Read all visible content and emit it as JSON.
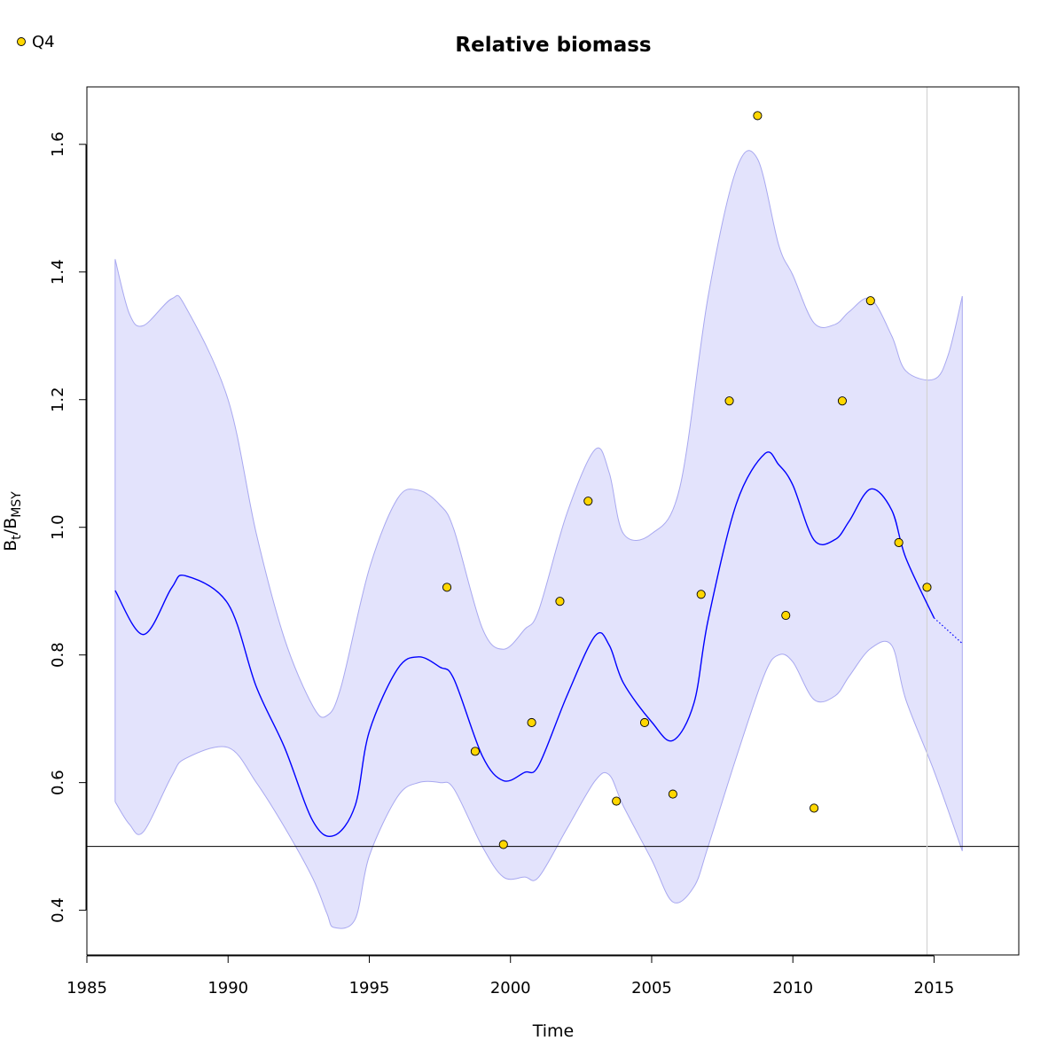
{
  "chart_data": {
    "type": "line",
    "title": "Relative biomass",
    "xlabel": "Time",
    "ylabel_main": "B",
    "ylabel_sub1": "t",
    "ylabel_slash": "/B",
    "ylabel_sub2": "MSY",
    "xlim": [
      1985,
      2018
    ],
    "ylim": [
      0.33,
      1.69
    ],
    "x_ticks": [
      1985,
      1990,
      1995,
      2000,
      2005,
      2010,
      2015
    ],
    "y_ticks": [
      0.4,
      0.6,
      0.8,
      1.0,
      1.2,
      1.4,
      1.6
    ],
    "y_tick_labels": [
      "0.4",
      "0.6",
      "0.8",
      "1.0",
      "1.2",
      "1.4",
      "1.6"
    ],
    "reference_line_y": 0.5,
    "vertical_line_x": 2014.75,
    "legend": {
      "position": "top-left",
      "entries": [
        {
          "label": "Q4",
          "color": "#ffd700"
        }
      ]
    },
    "colors": {
      "estimate": "#0000ff",
      "band_fill": "#e3e3fc",
      "band_edge": "#a8a8f0",
      "points": "#ffd700"
    },
    "series": [
      {
        "name": "Q4",
        "kind": "points",
        "x": [
          1997.75,
          1998.75,
          1999.75,
          2000.75,
          2001.75,
          2002.75,
          2003.75,
          2004.75,
          2005.75,
          2006.75,
          2007.75,
          2008.75,
          2009.75,
          2010.75,
          2011.75,
          2012.75,
          2013.75,
          2014.75
        ],
        "y": [
          0.906,
          0.649,
          0.503,
          0.694,
          0.884,
          1.041,
          0.571,
          0.694,
          0.582,
          0.895,
          1.198,
          1.645,
          0.862,
          0.56,
          1.198,
          1.355,
          0.976,
          0.906
        ]
      },
      {
        "kind": "estimate",
        "x": [
          1986,
          1987,
          1988,
          1988.5,
          1990,
          1991,
          1992,
          1993,
          1993.75,
          1994.5,
          1995,
          1996,
          1996.75,
          1997.5,
          1998,
          1999,
          1999.75,
          2000.5,
          2001,
          2002,
          2003,
          2003.5,
          2004,
          2005,
          2005.75,
          2006.5,
          2007,
          2008,
          2009,
          2009.5,
          2010,
          2010.75,
          2011.5,
          2012,
          2012.75,
          2013.5,
          2014,
          2015
        ],
        "y": [
          0.901,
          0.832,
          0.905,
          0.924,
          0.88,
          0.75,
          0.655,
          0.54,
          0.517,
          0.564,
          0.68,
          0.778,
          0.797,
          0.781,
          0.762,
          0.642,
          0.603,
          0.616,
          0.627,
          0.736,
          0.83,
          0.815,
          0.756,
          0.695,
          0.666,
          0.725,
          0.855,
          1.037,
          1.115,
          1.098,
          1.066,
          0.98,
          0.981,
          1.01,
          1.06,
          1.027,
          0.952,
          0.858
        ]
      },
      {
        "kind": "forecast",
        "x": [
          2015,
          2016
        ],
        "y": [
          0.858,
          0.818
        ]
      },
      {
        "kind": "band_upper",
        "x": [
          1986,
          1986.5,
          1987,
          1988,
          1988.5,
          1990,
          1991,
          1992,
          1993,
          1993.5,
          1994,
          1995,
          1996,
          1996.75,
          1997.5,
          1998,
          1999,
          1999.75,
          2000.5,
          2001,
          2002,
          2003,
          2003.5,
          2004,
          2005,
          2006,
          2007,
          2008,
          2008.75,
          2009.5,
          2010,
          2010.75,
          2011.5,
          2012,
          2012.75,
          2013.5,
          2014,
          2015,
          2015.5,
          2016
        ],
        "y": [
          1.42,
          1.335,
          1.316,
          1.358,
          1.345,
          1.2,
          0.99,
          0.825,
          0.72,
          0.705,
          0.75,
          0.935,
          1.045,
          1.058,
          1.035,
          0.996,
          0.842,
          0.809,
          0.84,
          0.87,
          1.022,
          1.122,
          1.085,
          0.99,
          0.99,
          1.063,
          1.362,
          1.561,
          1.577,
          1.442,
          1.395,
          1.32,
          1.318,
          1.338,
          1.358,
          1.3,
          1.245,
          1.232,
          1.27,
          1.362
        ]
      },
      {
        "kind": "band_lower",
        "x": [
          1986,
          1986.5,
          1987,
          1988,
          1988.5,
          1990,
          1991,
          1992,
          1993,
          1993.5,
          1993.75,
          1994.5,
          1995,
          1996,
          1996.75,
          1997.5,
          1998,
          1999,
          1999.75,
          2000.5,
          2001,
          2002,
          2003,
          2003.5,
          2004,
          2005,
          2005.75,
          2006.5,
          2007,
          2008,
          2009,
          2009.5,
          2010,
          2010.75,
          2011.5,
          2012,
          2012.75,
          2013.5,
          2014,
          2015,
          2016
        ],
        "y": [
          0.57,
          0.535,
          0.523,
          0.61,
          0.638,
          0.655,
          0.6,
          0.53,
          0.45,
          0.395,
          0.373,
          0.386,
          0.485,
          0.578,
          0.6,
          0.6,
          0.59,
          0.5,
          0.452,
          0.452,
          0.452,
          0.528,
          0.603,
          0.612,
          0.563,
          0.479,
          0.413,
          0.437,
          0.5,
          0.64,
          0.77,
          0.8,
          0.789,
          0.73,
          0.736,
          0.767,
          0.81,
          0.815,
          0.73,
          0.618,
          0.493
        ]
      }
    ]
  }
}
